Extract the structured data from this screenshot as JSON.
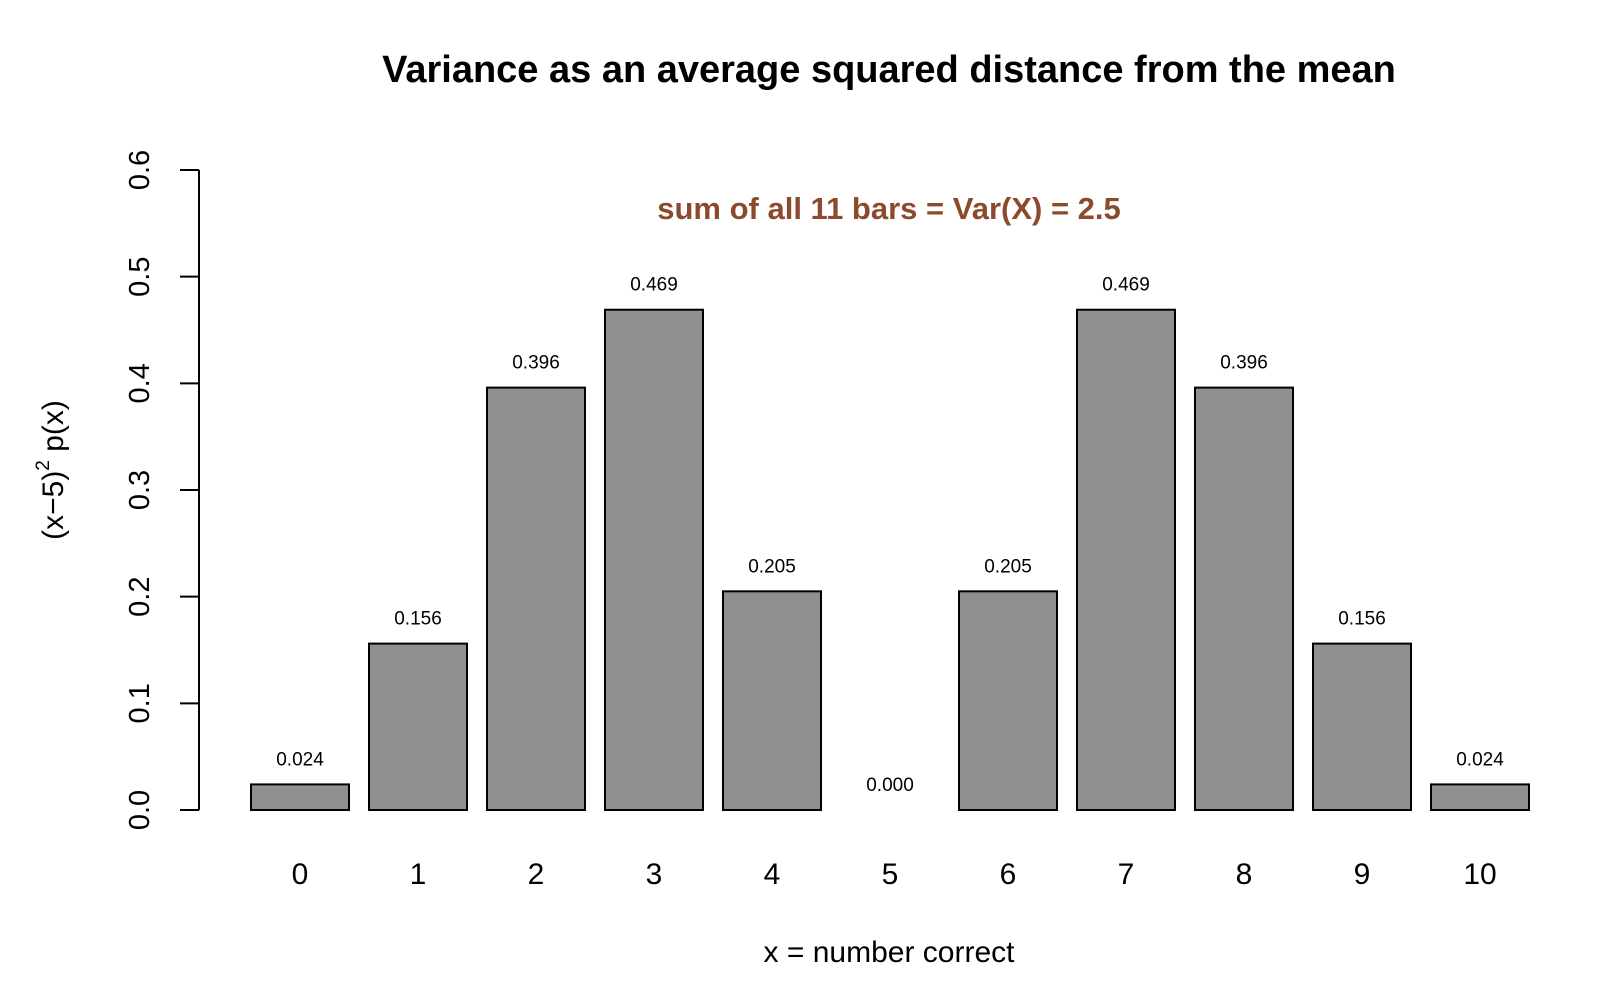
{
  "chart_data": {
    "type": "bar",
    "title": "Variance as an average squared distance from the mean",
    "annotation": {
      "text": "sum of all 11 bars = Var(X) = 2.5",
      "color": "#8B4A2B"
    },
    "xlabel": "x = number correct",
    "ylabel": {
      "before_superscript": "(x−5)",
      "superscript": "2",
      "after_superscript": " p(x)"
    },
    "ylim": [
      0,
      0.6
    ],
    "yticks": [
      "0.0",
      "0.1",
      "0.2",
      "0.3",
      "0.4",
      "0.5",
      "0.6"
    ],
    "categories": [
      "0",
      "1",
      "2",
      "3",
      "4",
      "5",
      "6",
      "7",
      "8",
      "9",
      "10"
    ],
    "values": [
      0.024,
      0.156,
      0.396,
      0.469,
      0.205,
      0.0,
      0.205,
      0.469,
      0.396,
      0.156,
      0.024
    ],
    "bar_labels": [
      "0.024",
      "0.156",
      "0.396",
      "0.469",
      "0.205",
      "0.000",
      "0.205",
      "0.469",
      "0.396",
      "0.156",
      "0.024"
    ],
    "bar_color": "#8F8F8F",
    "grid": false,
    "legend": "none"
  }
}
